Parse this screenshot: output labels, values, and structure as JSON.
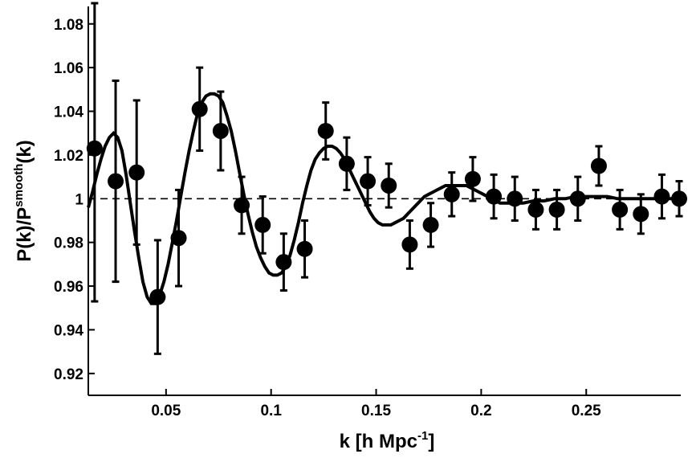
{
  "chart_data": {
    "type": "scatter",
    "title": "",
    "xlabel": {
      "base": "k [h Mpc",
      "sup": "-1",
      "tail": "]"
    },
    "ylabel": {
      "base": "P(k)/P",
      "sup": "smooth",
      "tail": "(k)"
    },
    "xlim": [
      0.013,
      0.295
    ],
    "ylim": [
      0.91,
      1.088
    ],
    "xticks": [
      0.05,
      0.1,
      0.15,
      0.2,
      0.25
    ],
    "xtick_labels": [
      "0.05",
      "0.1",
      "0.15",
      "0.2",
      "0.25"
    ],
    "yticks": [
      0.92,
      0.94,
      0.96,
      0.98,
      1.0,
      1.02,
      1.04,
      1.06,
      1.08
    ],
    "ytick_labels": [
      "0.92",
      "0.94",
      "0.96",
      "0.98",
      "1",
      "1.02",
      "1.04",
      "1.06",
      "1.08"
    ],
    "reference_line": {
      "y": 1.0,
      "style": "dashed"
    },
    "grid": false,
    "legend": "none",
    "points": [
      {
        "x": 0.016,
        "y": 1.023,
        "err_low": 0.07,
        "err_high": 0.07
      },
      {
        "x": 0.026,
        "y": 1.008,
        "err_low": 0.046,
        "err_high": 0.046
      },
      {
        "x": 0.036,
        "y": 1.012,
        "err_low": 0.033,
        "err_high": 0.033
      },
      {
        "x": 0.046,
        "y": 0.955,
        "err_low": 0.026,
        "err_high": 0.026
      },
      {
        "x": 0.056,
        "y": 0.982,
        "err_low": 0.022,
        "err_high": 0.022
      },
      {
        "x": 0.066,
        "y": 1.041,
        "err_low": 0.019,
        "err_high": 0.019
      },
      {
        "x": 0.076,
        "y": 1.031,
        "err_low": 0.018,
        "err_high": 0.018
      },
      {
        "x": 0.086,
        "y": 0.997,
        "err_low": 0.013,
        "err_high": 0.013
      },
      {
        "x": 0.096,
        "y": 0.988,
        "err_low": 0.013,
        "err_high": 0.013
      },
      {
        "x": 0.106,
        "y": 0.971,
        "err_low": 0.013,
        "err_high": 0.013
      },
      {
        "x": 0.116,
        "y": 0.977,
        "err_low": 0.013,
        "err_high": 0.013
      },
      {
        "x": 0.126,
        "y": 1.031,
        "err_low": 0.013,
        "err_high": 0.013
      },
      {
        "x": 0.136,
        "y": 1.016,
        "err_low": 0.012,
        "err_high": 0.012
      },
      {
        "x": 0.146,
        "y": 1.008,
        "err_low": 0.011,
        "err_high": 0.011
      },
      {
        "x": 0.156,
        "y": 1.006,
        "err_low": 0.01,
        "err_high": 0.01
      },
      {
        "x": 0.166,
        "y": 0.979,
        "err_low": 0.011,
        "err_high": 0.011
      },
      {
        "x": 0.176,
        "y": 0.988,
        "err_low": 0.01,
        "err_high": 0.01
      },
      {
        "x": 0.186,
        "y": 1.002,
        "err_low": 0.01,
        "err_high": 0.01
      },
      {
        "x": 0.196,
        "y": 1.009,
        "err_low": 0.01,
        "err_high": 0.01
      },
      {
        "x": 0.206,
        "y": 1.001,
        "err_low": 0.01,
        "err_high": 0.01
      },
      {
        "x": 0.216,
        "y": 1.0,
        "err_low": 0.01,
        "err_high": 0.01
      },
      {
        "x": 0.226,
        "y": 0.995,
        "err_low": 0.009,
        "err_high": 0.009
      },
      {
        "x": 0.236,
        "y": 0.995,
        "err_low": 0.009,
        "err_high": 0.009
      },
      {
        "x": 0.246,
        "y": 1.0,
        "err_low": 0.01,
        "err_high": 0.01
      },
      {
        "x": 0.256,
        "y": 1.015,
        "err_low": 0.009,
        "err_high": 0.009
      },
      {
        "x": 0.266,
        "y": 0.995,
        "err_low": 0.009,
        "err_high": 0.009
      },
      {
        "x": 0.276,
        "y": 0.993,
        "err_low": 0.009,
        "err_high": 0.009
      },
      {
        "x": 0.286,
        "y": 1.001,
        "err_low": 0.01,
        "err_high": 0.01
      },
      {
        "x": 0.296,
        "y": 1.0,
        "err_low": 0.008,
        "err_high": 0.008
      }
    ],
    "model_curve": {
      "x": [
        0.013,
        0.015,
        0.017,
        0.019,
        0.021,
        0.023,
        0.025,
        0.027,
        0.029,
        0.031,
        0.033,
        0.035,
        0.037,
        0.039,
        0.041,
        0.043,
        0.045,
        0.047,
        0.049,
        0.051,
        0.053,
        0.055,
        0.057,
        0.059,
        0.061,
        0.063,
        0.065,
        0.067,
        0.069,
        0.071,
        0.073,
        0.075,
        0.077,
        0.079,
        0.081,
        0.083,
        0.085,
        0.087,
        0.089,
        0.091,
        0.093,
        0.095,
        0.097,
        0.099,
        0.101,
        0.103,
        0.105,
        0.107,
        0.109,
        0.111,
        0.113,
        0.115,
        0.117,
        0.119,
        0.121,
        0.123,
        0.125,
        0.127,
        0.129,
        0.131,
        0.133,
        0.135,
        0.137,
        0.139,
        0.141,
        0.143,
        0.145,
        0.147,
        0.149,
        0.151,
        0.153,
        0.155,
        0.157,
        0.159,
        0.161,
        0.163,
        0.165,
        0.167,
        0.169,
        0.171,
        0.173,
        0.175,
        0.177,
        0.179,
        0.181,
        0.183,
        0.185,
        0.187,
        0.189,
        0.191,
        0.193,
        0.195,
        0.197,
        0.199,
        0.201,
        0.203,
        0.205,
        0.207,
        0.209,
        0.211,
        0.213,
        0.215,
        0.22,
        0.225,
        0.23,
        0.235,
        0.24,
        0.245,
        0.25,
        0.255,
        0.26,
        0.265,
        0.27,
        0.275,
        0.28,
        0.285,
        0.29,
        0.295
      ],
      "y": [
        0.996,
        1.003,
        1.011,
        1.018,
        1.024,
        1.028,
        1.03,
        1.028,
        1.022,
        1.011,
        0.998,
        0.985,
        0.973,
        0.962,
        0.955,
        0.952,
        0.952,
        0.956,
        0.962,
        0.97,
        0.98,
        0.99,
        1.001,
        1.012,
        1.022,
        1.031,
        1.039,
        1.044,
        1.047,
        1.048,
        1.048,
        1.047,
        1.044,
        1.038,
        1.031,
        1.022,
        1.012,
        1.002,
        0.993,
        0.985,
        0.978,
        0.973,
        0.969,
        0.966,
        0.965,
        0.965,
        0.966,
        0.969,
        0.974,
        0.981,
        0.989,
        0.998,
        1.006,
        1.013,
        1.018,
        1.021,
        1.023,
        1.024,
        1.024,
        1.023,
        1.021,
        1.018,
        1.014,
        1.01,
        1.006,
        1.002,
        0.998,
        0.994,
        0.991,
        0.989,
        0.988,
        0.988,
        0.988,
        0.989,
        0.99,
        0.991,
        0.993,
        0.995,
        0.997,
        0.999,
        1.001,
        1.002,
        1.003,
        1.004,
        1.005,
        1.006,
        1.006,
        1.006,
        1.006,
        1.006,
        1.006,
        1.005,
        1.004,
        1.003,
        1.002,
        1.001,
        1.0,
        0.999,
        0.998,
        0.998,
        0.998,
        0.998,
        0.998,
        0.999,
        0.999,
        1.0,
        1.0,
        1.001,
        1.001,
        1.001,
        1.001,
        1.0,
        1.0,
        1.0,
        1.0,
        1.0,
        1.0,
        1.0
      ]
    }
  }
}
